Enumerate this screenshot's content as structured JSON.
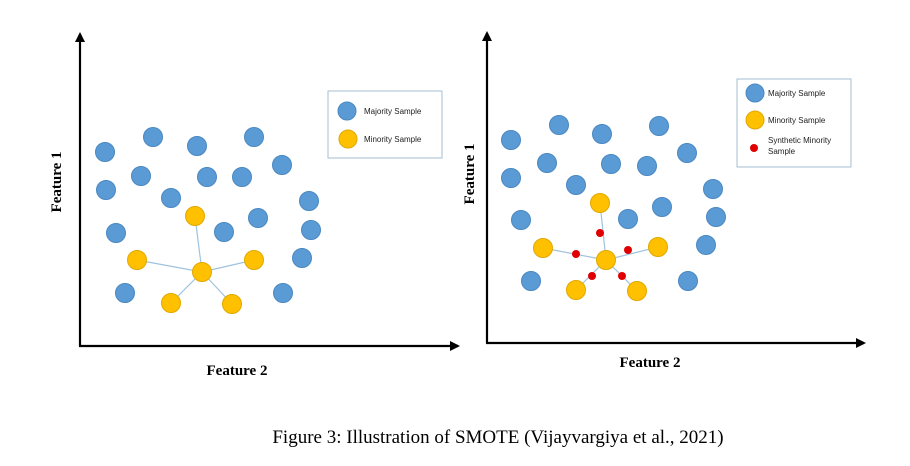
{
  "colors": {
    "majority": "#5b9bd5",
    "majority_edge": "#4a88c2",
    "minority": "#ffc000",
    "minority_edge": "#e0a800",
    "synthetic": "#e00000",
    "connector": "#9fc3dd",
    "axis": "#000000",
    "legend_border": "#a6bfd3"
  },
  "left_panel": {
    "x_label": "Feature 2",
    "y_label": "Feature 1",
    "legend": {
      "majority_label": "Majority Sample",
      "minority_label": "Minority Sample"
    }
  },
  "right_panel": {
    "x_label": "Feature 2",
    "y_label": "Feature 1",
    "legend": {
      "majority_label": "Majority Sample",
      "minority_label": "Minority Sample",
      "synthetic_label_line1": "Synthetic Minority",
      "synthetic_label_line2": "Sample"
    }
  },
  "caption": "Figure 3: Illustration of SMOTE (Vijayvargiya et al., 2021)"
}
